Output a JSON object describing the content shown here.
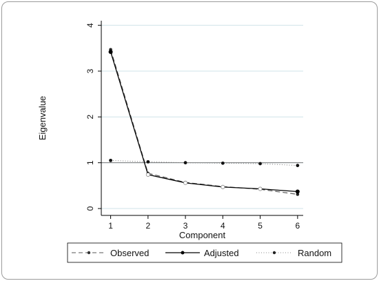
{
  "chart_data": {
    "type": "line",
    "title": "",
    "xlabel": "Component",
    "ylabel": "Eigenvalue",
    "x": [
      1,
      2,
      3,
      4,
      5,
      6
    ],
    "xticks": [
      "1",
      "2",
      "3",
      "4",
      "5",
      "6"
    ],
    "yticks": [
      "0",
      "1",
      "2",
      "3",
      "4"
    ],
    "xlim": [
      0.75,
      6.15
    ],
    "ylim": [
      -0.15,
      4.1
    ],
    "reference_line": 1,
    "grid": true,
    "legend_position": "bottom",
    "series": [
      {
        "name": "Observed",
        "style": "dashed",
        "color": "#555555",
        "values": [
          3.47,
          0.77,
          0.57,
          0.48,
          0.42,
          0.31
        ]
      },
      {
        "name": "Adjusted",
        "style": "solid",
        "color": "#000000",
        "values": [
          3.42,
          0.74,
          0.56,
          0.47,
          0.43,
          0.37
        ]
      },
      {
        "name": "Random",
        "style": "dotted",
        "color": "#777777",
        "values": [
          1.05,
          1.02,
          1.0,
          0.99,
          0.98,
          0.94
        ]
      }
    ]
  }
}
